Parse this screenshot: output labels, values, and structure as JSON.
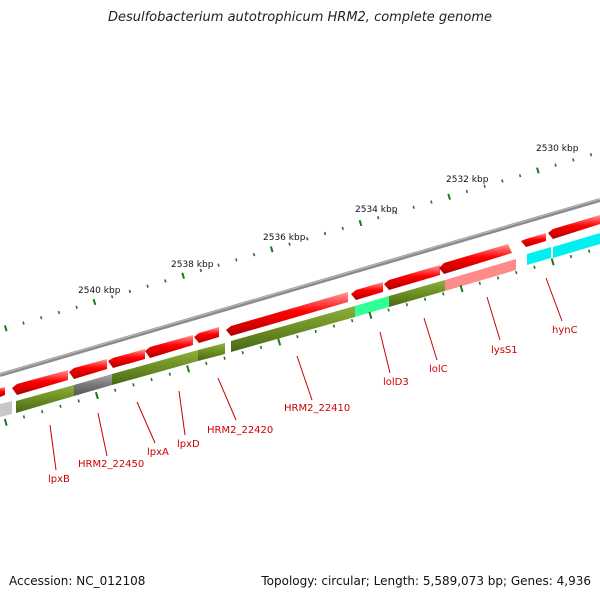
{
  "title": "Desulfobacterium autotrophicum HRM2, complete genome",
  "accession": "Accession: NC_012108",
  "summary": "Topology: circular; Length: 5,589,073 bp; Genes: 4,936",
  "ticks": [
    {
      "label": "2530 kbp"
    },
    {
      "label": "2532 kbp"
    },
    {
      "label": "2534 kbp"
    },
    {
      "label": "2536 kbp"
    },
    {
      "label": "2538 kbp"
    },
    {
      "label": "2540 kbp"
    }
  ],
  "genes": [
    {
      "name": "hynC"
    },
    {
      "name": "lysS1"
    },
    {
      "name": "lolC"
    },
    {
      "name": "lolD3"
    },
    {
      "name": "HRM2_22410"
    },
    {
      "name": "HRM2_22420"
    },
    {
      "name": "lpxD"
    },
    {
      "name": "lpxA"
    },
    {
      "name": "HRM2_22450"
    },
    {
      "name": "lpxB"
    }
  ],
  "colors": {
    "forward_cds": "#ff0000",
    "cog_green": "#6b8e23",
    "highlight_cyan": "#00ffff",
    "highlight_mint": "#33ff99",
    "pink": "#ff8080",
    "grey": "#666666",
    "backbone": "#888888",
    "tick": "#1a7a1a",
    "label": "#cc0000"
  }
}
